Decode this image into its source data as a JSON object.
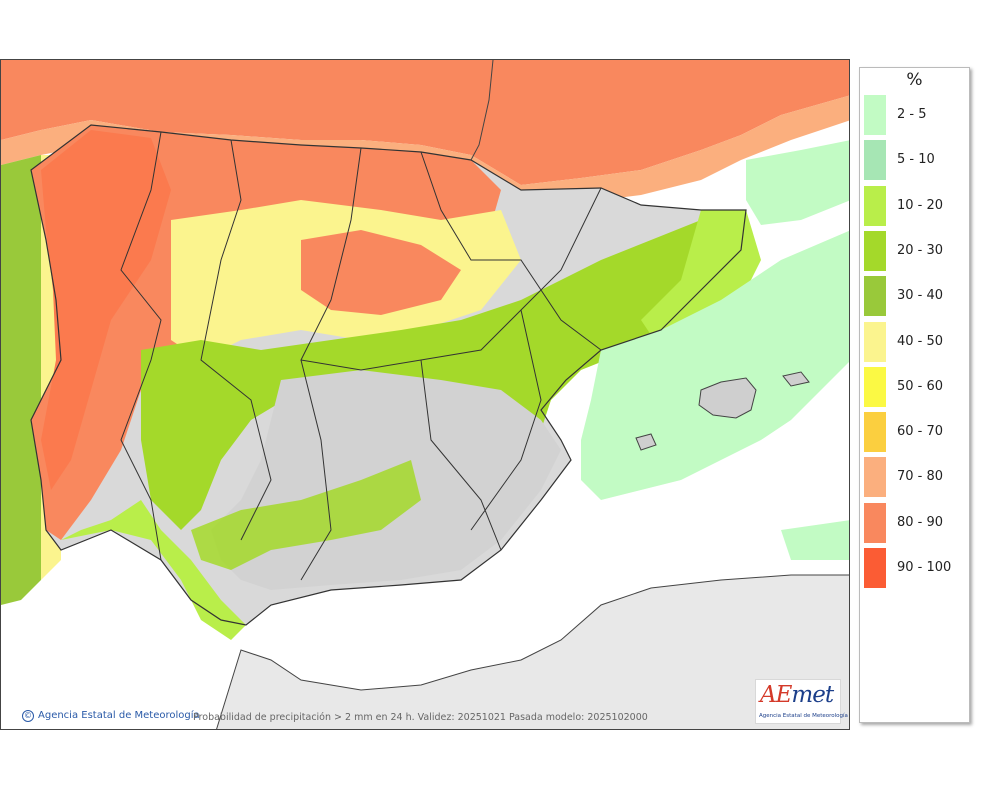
{
  "footer": {
    "agency": "Agencia Estatal de Meteorología",
    "caption": "Probabilidad de precipitación > 2 mm en 24 h. Validez: 20251021 Pasada modelo: 2025102000"
  },
  "logo": {
    "word_a": "AE",
    "word_b": "met",
    "subtitle": "Agencia Estatal de Meteorología"
  },
  "legend": {
    "title": "%",
    "items": [
      {
        "label": "2 - 5",
        "color": "#c2fbc4"
      },
      {
        "label": "5 - 10",
        "color": "#a6e6b4"
      },
      {
        "label": "10 - 20",
        "color": "#b9ee4a"
      },
      {
        "label": "20 - 30",
        "color": "#a4d92a"
      },
      {
        "label": "30 - 40",
        "color": "#99c93a"
      },
      {
        "label": "40 - 50",
        "color": "#fbf48e"
      },
      {
        "label": "50 - 60",
        "color": "#fbf944"
      },
      {
        "label": "60 - 70",
        "color": "#fbcf3f"
      },
      {
        "label": "70 - 80",
        "color": "#fbaf7e"
      },
      {
        "label": "80 - 90",
        "color": "#f9885e"
      },
      {
        "label": "90 - 100",
        "color": "#fb5c34"
      }
    ]
  }
}
